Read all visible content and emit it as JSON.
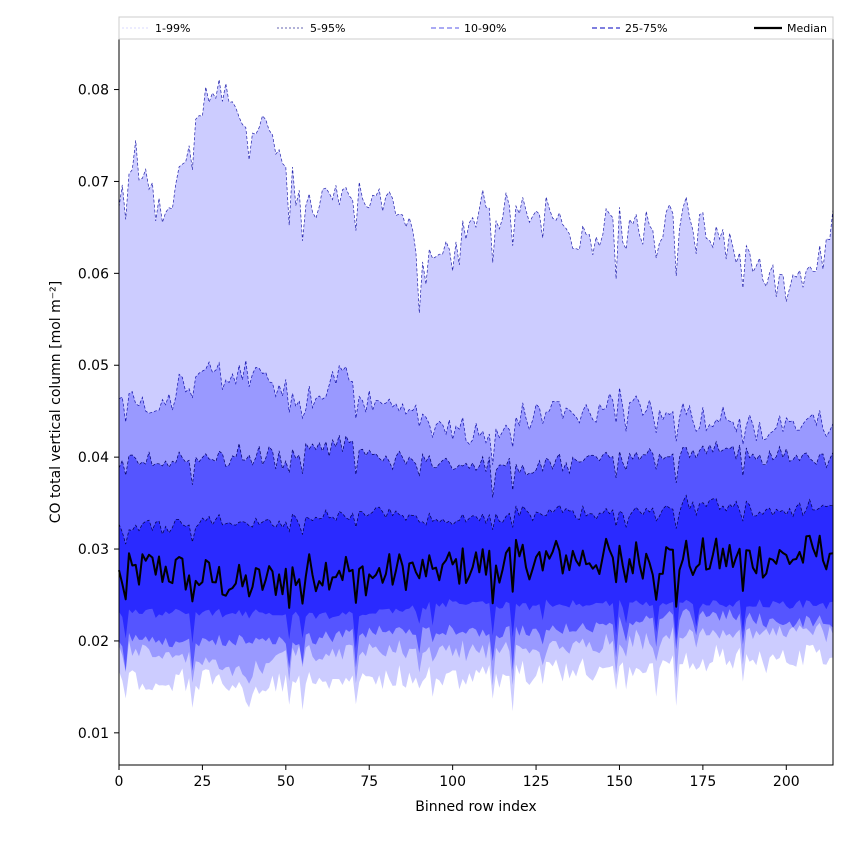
{
  "chart_data": {
    "type": "area",
    "title": "",
    "xlabel": "Binned row index",
    "ylabel": "CO total vertical column [mol m⁻²]",
    "xlim": [
      0,
      214
    ],
    "ylim": [
      0.0065,
      0.0855
    ],
    "x_ticks": [
      0,
      25,
      50,
      75,
      100,
      125,
      150,
      175,
      200
    ],
    "x_tick_labels": [
      "0",
      "25",
      "50",
      "75",
      "100",
      "125",
      "150",
      "175",
      "200"
    ],
    "y_ticks": [
      0.01,
      0.02,
      0.03,
      0.04,
      0.05,
      0.06,
      0.07,
      0.08
    ],
    "y_tick_labels": [
      "0.01",
      "0.02",
      "0.03",
      "0.04",
      "0.05",
      "0.06",
      "0.07",
      "0.08"
    ],
    "grid": false,
    "legend_position": "top",
    "legend": [
      {
        "label": "1-99%",
        "color": "#ccccff",
        "dash": "2,2",
        "width": 0.8
      },
      {
        "label": "5-95%",
        "color": "#333399",
        "dash": "2,2",
        "width": 0.8
      },
      {
        "label": "10-90%",
        "color": "#7777ee",
        "dash": "5,3",
        "width": 1.2
      },
      {
        "label": "25-75%",
        "color": "#3333cc",
        "dash": "5,3",
        "width": 1.2
      },
      {
        "label": "Median",
        "color": "#000000",
        "dash": "",
        "width": 2.2
      }
    ],
    "bands": [
      {
        "name": "1-99%",
        "fill": "#ccccff",
        "line": "#2222aa",
        "lower_anchors": [
          [
            0,
            0.016
          ],
          [
            10,
            0.015
          ],
          [
            25,
            0.016
          ],
          [
            38,
            0.014
          ],
          [
            50,
            0.016
          ],
          [
            66,
            0.016
          ],
          [
            75,
            0.016
          ],
          [
            100,
            0.016
          ],
          [
            125,
            0.017
          ],
          [
            150,
            0.017
          ],
          [
            175,
            0.018
          ],
          [
            200,
            0.018
          ],
          [
            214,
            0.019
          ]
        ],
        "upper_anchors": [
          [
            0,
            0.068
          ],
          [
            5,
            0.073
          ],
          [
            10,
            0.068
          ],
          [
            12,
            0.066
          ],
          [
            18,
            0.07
          ],
          [
            25,
            0.078
          ],
          [
            31,
            0.081
          ],
          [
            36,
            0.076
          ],
          [
            40,
            0.074
          ],
          [
            43,
            0.078
          ],
          [
            50,
            0.071
          ],
          [
            56,
            0.068
          ],
          [
            66,
            0.069
          ],
          [
            75,
            0.068
          ],
          [
            80,
            0.069
          ],
          [
            88,
            0.064
          ],
          [
            90,
            0.059
          ],
          [
            95,
            0.063
          ],
          [
            100,
            0.061
          ],
          [
            105,
            0.065
          ],
          [
            110,
            0.067
          ],
          [
            125,
            0.067
          ],
          [
            131,
            0.066
          ],
          [
            138,
            0.063
          ],
          [
            150,
            0.065
          ],
          [
            160,
            0.065
          ],
          [
            170,
            0.066
          ],
          [
            175,
            0.065
          ],
          [
            180,
            0.063
          ],
          [
            190,
            0.062
          ],
          [
            200,
            0.058
          ],
          [
            210,
            0.061
          ],
          [
            214,
            0.066
          ]
        ]
      },
      {
        "name": "5-95%",
        "fill": "#9999ff",
        "line": "#1111aa",
        "lower_anchors": [
          [
            0,
            0.019
          ],
          [
            25,
            0.018
          ],
          [
            38,
            0.016
          ],
          [
            50,
            0.019
          ],
          [
            75,
            0.019
          ],
          [
            100,
            0.019
          ],
          [
            125,
            0.019
          ],
          [
            150,
            0.02
          ],
          [
            175,
            0.021
          ],
          [
            200,
            0.021
          ],
          [
            214,
            0.021
          ]
        ],
        "upper_anchors": [
          [
            0,
            0.047
          ],
          [
            10,
            0.045
          ],
          [
            20,
            0.048
          ],
          [
            30,
            0.049
          ],
          [
            40,
            0.049
          ],
          [
            50,
            0.047
          ],
          [
            60,
            0.046
          ],
          [
            66,
            0.05
          ],
          [
            75,
            0.046
          ],
          [
            88,
            0.045
          ],
          [
            100,
            0.043
          ],
          [
            110,
            0.042
          ],
          [
            125,
            0.045
          ],
          [
            140,
            0.045
          ],
          [
            150,
            0.046
          ],
          [
            170,
            0.045
          ],
          [
            180,
            0.044
          ],
          [
            200,
            0.043
          ],
          [
            214,
            0.044
          ]
        ]
      },
      {
        "name": "10-90%",
        "fill": "#5555ff",
        "line": "#000066",
        "lower_anchors": [
          [
            0,
            0.02
          ],
          [
            25,
            0.02
          ],
          [
            50,
            0.02
          ],
          [
            75,
            0.021
          ],
          [
            100,
            0.021
          ],
          [
            125,
            0.021
          ],
          [
            150,
            0.022
          ],
          [
            175,
            0.023
          ],
          [
            200,
            0.022
          ],
          [
            214,
            0.022
          ]
        ],
        "upper_anchors": [
          [
            0,
            0.039
          ],
          [
            25,
            0.04
          ],
          [
            50,
            0.04
          ],
          [
            66,
            0.042
          ],
          [
            75,
            0.04
          ],
          [
            100,
            0.039
          ],
          [
            125,
            0.039
          ],
          [
            150,
            0.04
          ],
          [
            175,
            0.041
          ],
          [
            200,
            0.04
          ],
          [
            214,
            0.04
          ]
        ]
      },
      {
        "name": "25-75%",
        "fill": "#2a2aff",
        "line": "#000044",
        "lower_anchors": [
          [
            0,
            0.023
          ],
          [
            25,
            0.023
          ],
          [
            50,
            0.023
          ],
          [
            75,
            0.023
          ],
          [
            100,
            0.024
          ],
          [
            125,
            0.024
          ],
          [
            150,
            0.024
          ],
          [
            175,
            0.024
          ],
          [
            200,
            0.024
          ],
          [
            214,
            0.024
          ]
        ],
        "upper_anchors": [
          [
            0,
            0.032
          ],
          [
            25,
            0.033
          ],
          [
            50,
            0.033
          ],
          [
            75,
            0.034
          ],
          [
            100,
            0.033
          ],
          [
            125,
            0.034
          ],
          [
            150,
            0.034
          ],
          [
            175,
            0.035
          ],
          [
            200,
            0.034
          ],
          [
            214,
            0.035
          ]
        ]
      }
    ],
    "median": {
      "name": "Median",
      "color": "#000000",
      "anchors": [
        [
          0,
          0.027
        ],
        [
          10,
          0.028
        ],
        [
          25,
          0.027
        ],
        [
          38,
          0.026
        ],
        [
          50,
          0.027
        ],
        [
          66,
          0.028
        ],
        [
          75,
          0.027
        ],
        [
          90,
          0.028
        ],
        [
          100,
          0.028
        ],
        [
          125,
          0.029
        ],
        [
          150,
          0.029
        ],
        [
          175,
          0.029
        ],
        [
          200,
          0.029
        ],
        [
          214,
          0.03
        ]
      ]
    }
  }
}
